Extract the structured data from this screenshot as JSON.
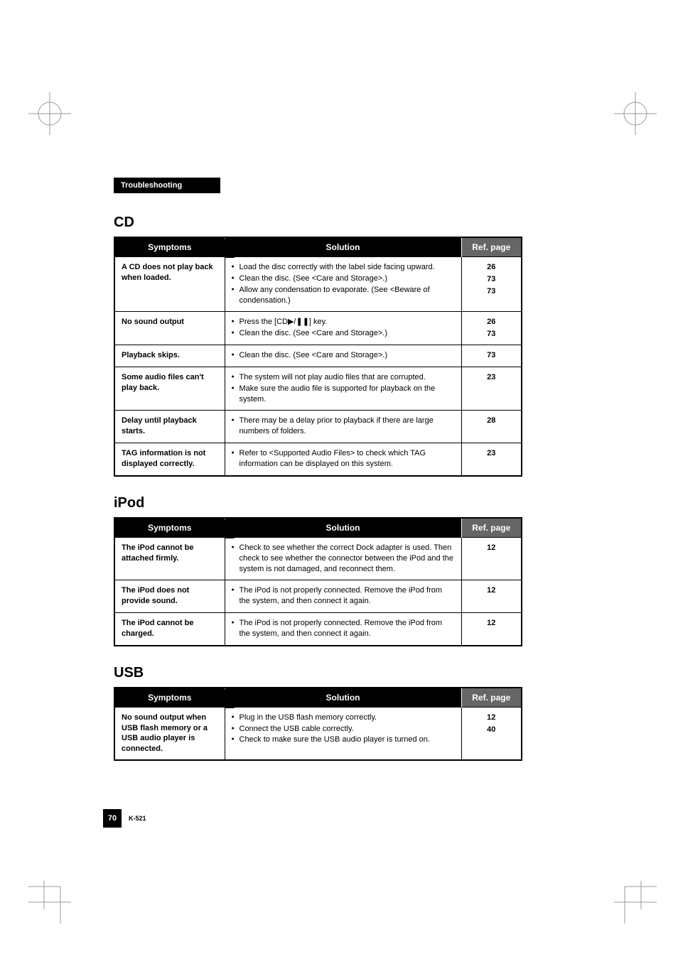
{
  "header": {
    "section_label": "Troubleshooting"
  },
  "sections": {
    "cd": {
      "title": "CD",
      "headers": {
        "symptoms": "Symptoms",
        "solution": "Solution",
        "ref": "Ref. page"
      },
      "rows": [
        {
          "symptom": "A CD does not play back when loaded.",
          "solutions": [
            "Load the disc correctly with the label side facing upward.",
            "Clean the disc. (See <Care and Storage>.)",
            "Allow any condensation to evaporate. (See <Beware of condensation.)"
          ],
          "refs": [
            "26",
            "73",
            "73"
          ]
        },
        {
          "symptom": "No sound output",
          "solutions": [
            "Press the [CD▶/❚❚] key.",
            "Clean the disc. (See <Care and Storage>.)"
          ],
          "refs": [
            "26",
            "73"
          ]
        },
        {
          "symptom": "Playback skips.",
          "solutions": [
            "Clean the disc. (See <Care and Storage>.)"
          ],
          "refs": [
            "73"
          ]
        },
        {
          "symptom": "Some audio files can't play back.",
          "solutions": [
            "The system will not play audio files that are corrupted.",
            "Make sure the audio file is supported for playback on the system."
          ],
          "refs": [
            "23"
          ]
        },
        {
          "symptom": "Delay until playback starts.",
          "solutions": [
            "There may be a delay prior to playback if there are large numbers of folders."
          ],
          "refs": [
            "28"
          ]
        },
        {
          "symptom": "TAG information is not displayed correctly.",
          "solutions": [
            "Refer to <Supported Audio Files> to check which TAG information can be displayed on this system."
          ],
          "refs": [
            "23"
          ]
        }
      ]
    },
    "ipod": {
      "title": "iPod",
      "headers": {
        "symptoms": "Symptoms",
        "solution": "Solution",
        "ref": "Ref. page"
      },
      "rows": [
        {
          "symptom": "The iPod cannot be attached firmly.",
          "solutions": [
            "Check to see whether the correct Dock adapter is used. Then check to see whether the connector between the iPod and the system is not damaged, and reconnect them."
          ],
          "refs": [
            "12"
          ]
        },
        {
          "symptom": "The iPod does not provide sound.",
          "solutions": [
            "The iPod is not properly connected. Remove the iPod from the system, and then connect it again."
          ],
          "refs": [
            "12"
          ]
        },
        {
          "symptom": "The iPod cannot be charged.",
          "solutions": [
            "The iPod is not properly connected. Remove the iPod from the system, and then connect it again."
          ],
          "refs": [
            "12"
          ]
        }
      ]
    },
    "usb": {
      "title": "USB",
      "headers": {
        "symptoms": "Symptoms",
        "solution": "Solution",
        "ref": "Ref. page"
      },
      "rows": [
        {
          "symptom": "No sound output when USB flash memory or a USB audio player is connected.",
          "solutions": [
            "Plug in the USB flash memory correctly.",
            "Connect the USB cable correctly.",
            "Check to make sure the USB audio player is turned on."
          ],
          "refs": [
            "12",
            "40"
          ]
        }
      ]
    }
  },
  "footer": {
    "page_number": "70",
    "model": "K-521"
  }
}
